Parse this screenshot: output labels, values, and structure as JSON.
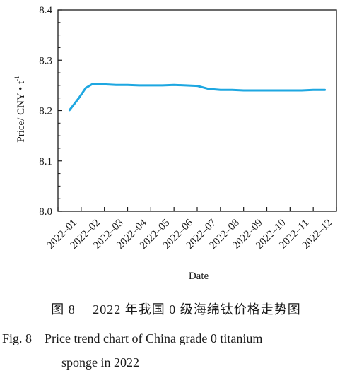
{
  "chart_data": {
    "type": "line",
    "title": "",
    "xlabel": "Date",
    "ylabel": "Price/ CNY·t⁻¹",
    "ylabel_parts": {
      "main": "Price/ CNY • t",
      "superscript": "-1"
    },
    "ylim": [
      8.0,
      8.4
    ],
    "yticks": [
      "8.0",
      "8.1",
      "8.2",
      "8.3",
      "8.4"
    ],
    "categories": [
      "2022–01",
      "2022–02",
      "2022–03",
      "2022–04",
      "2022–05",
      "2022–06",
      "2022–07",
      "2022–08",
      "2022–09",
      "2022–10",
      "2022–11",
      "2022–12"
    ],
    "grid": false,
    "legend": "none",
    "line_color": "#1ea7e1",
    "series": [
      {
        "x": [
          0.5,
          0.9,
          1.2,
          1.5,
          2.0,
          2.5,
          3.0,
          3.5,
          4.0,
          4.5,
          5.0,
          5.5,
          6.0,
          6.5,
          7.0,
          7.5,
          8.0,
          8.5,
          9.0,
          9.5,
          10.0,
          10.5,
          11.0,
          11.5
        ],
        "values": [
          8.201,
          8.225,
          8.245,
          8.253,
          8.252,
          8.251,
          8.251,
          8.25,
          8.25,
          8.25,
          8.251,
          8.25,
          8.249,
          8.243,
          8.241,
          8.241,
          8.24,
          8.24,
          8.24,
          8.24,
          8.24,
          8.24,
          8.241,
          8.241
        ]
      }
    ]
  },
  "caption": {
    "cn": "图 8　 2022 年我国 0 级海绵钛价格走势图",
    "en_line1": "Fig. 8　Price trend chart of China grade 0 titanium",
    "en_line2": "sponge in 2022"
  }
}
